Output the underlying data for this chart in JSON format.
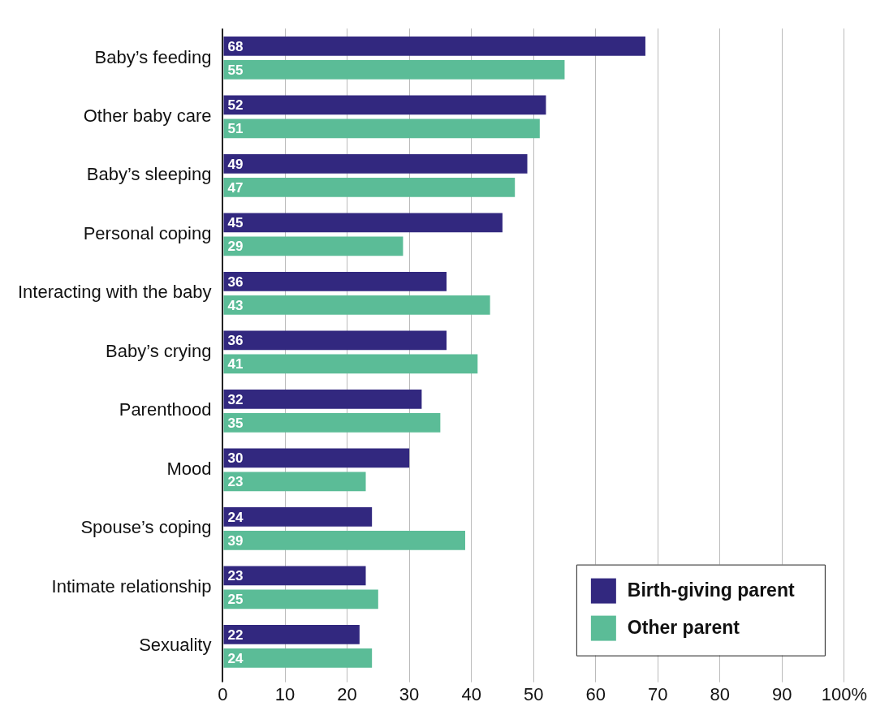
{
  "chart_data": {
    "type": "bar",
    "orientation": "horizontal",
    "categories": [
      "Baby’s feeding",
      "Other baby care",
      "Baby’s sleeping",
      "Personal coping",
      "Interacting with the baby",
      "Baby’s crying",
      "Parenthood",
      "Mood",
      "Spouse’s coping",
      "Intimate relationship",
      "Sexuality"
    ],
    "series": [
      {
        "name": "Birth-giving parent",
        "color": "#32287f",
        "values": [
          68,
          52,
          49,
          45,
          36,
          36,
          32,
          30,
          24,
          23,
          22
        ]
      },
      {
        "name": "Other parent",
        "color": "#5bbc97",
        "values": [
          55,
          51,
          47,
          29,
          43,
          41,
          35,
          23,
          39,
          25,
          24
        ]
      }
    ],
    "xlim": [
      0,
      100
    ],
    "xticks": [
      0,
      10,
      20,
      30,
      40,
      50,
      60,
      70,
      80,
      90,
      {
        "value": 100,
        "label": "100%"
      }
    ],
    "grid": "x",
    "legend": "bottom right",
    "data_labels": true
  }
}
